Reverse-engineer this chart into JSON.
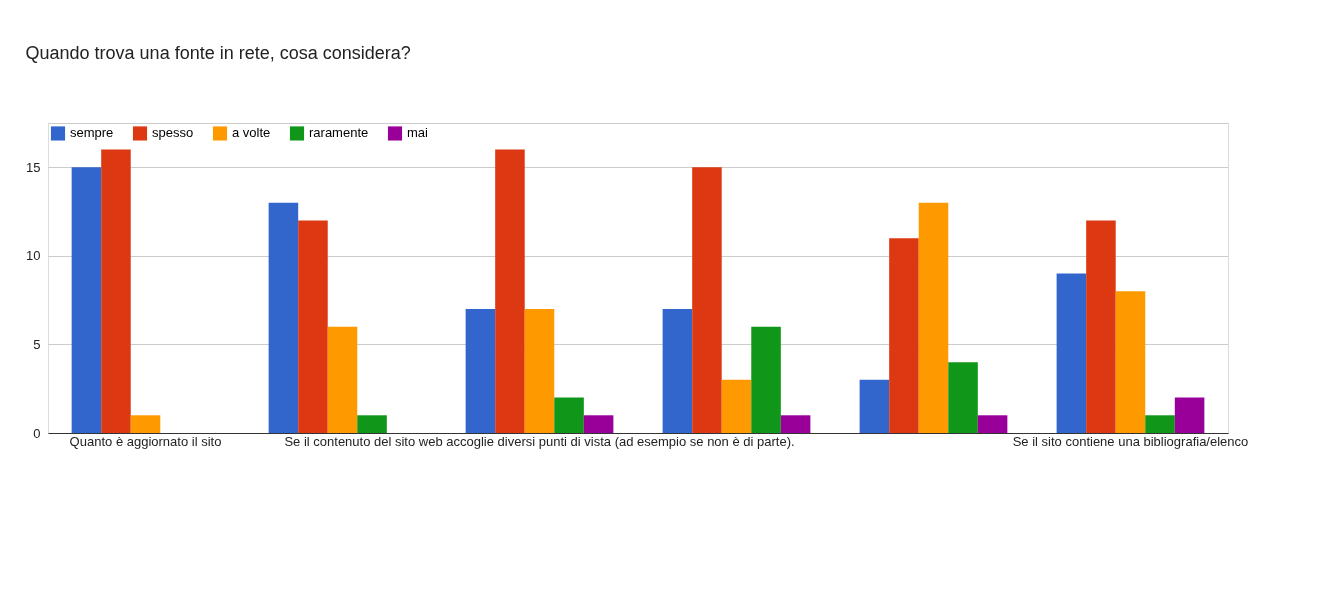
{
  "chart_data": {
    "type": "bar",
    "title": "Quando trova una fonte in rete, cosa considera?",
    "categories": [
      "Quanto è aggiornato il sito",
      null,
      "Se il contenuto del sito web accoglie diversi punti di vista (ad esempio se non è di parte).",
      null,
      null,
      "Se il sito contiene una bibliografia/elenco"
    ],
    "series": [
      {
        "name": "sempre",
        "color": "#3366cc",
        "values": [
          15,
          13,
          7,
          7,
          3,
          9
        ]
      },
      {
        "name": "spesso",
        "color": "#dc3912",
        "values": [
          16,
          12,
          16,
          15,
          11,
          12
        ]
      },
      {
        "name": "a volte",
        "color": "#ff9900",
        "values": [
          1,
          6,
          7,
          3,
          13,
          8
        ]
      },
      {
        "name": "raramente",
        "color": "#109618",
        "values": [
          0,
          1,
          2,
          6,
          4,
          1
        ]
      },
      {
        "name": "mai",
        "color": "#990099",
        "values": [
          0,
          0,
          1,
          1,
          1,
          2
        ]
      }
    ],
    "ylim": [
      0,
      17.5
    ],
    "yticks": [
      0,
      5,
      10,
      15,
      {
        "value": 17.5,
        "label": null
      }
    ],
    "grid": "y",
    "legend": "top left"
  }
}
